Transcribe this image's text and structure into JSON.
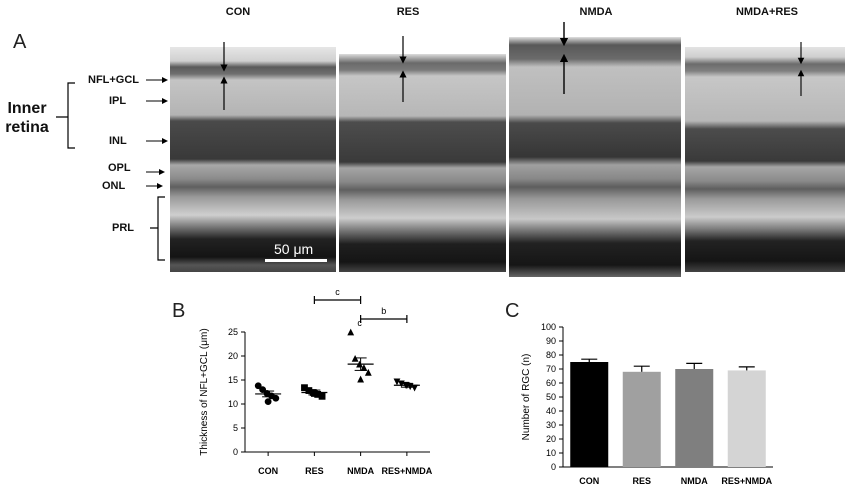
{
  "panelA": {
    "letter": "A",
    "columns": [
      "CON",
      "RES",
      "NMDA",
      "NMDA+RES"
    ],
    "layers": [
      "NFL+GCL",
      "IPL",
      "INL",
      "OPL",
      "ONL",
      "PRL"
    ],
    "inner_retina": "Inner retina",
    "scale_bar": "50 μm"
  },
  "panelB": {
    "letter": "B",
    "sig_c": "c",
    "sig_b": "b",
    "sig_point_c": "c"
  },
  "panelC": {
    "letter": "C"
  },
  "chart_data": [
    {
      "type": "scatter",
      "ylabel": "Thickness of NFL+GCL (μm)",
      "xlabel": "",
      "categories": [
        "CON",
        "RES",
        "NMDA",
        "RES+NMDA"
      ],
      "ylim": [
        0,
        25
      ],
      "yticks": [
        0,
        5,
        10,
        15,
        20,
        25
      ],
      "markers": [
        "circle",
        "square",
        "triangle-up",
        "triangle-down"
      ],
      "series": [
        {
          "points": [
            13.8,
            13.0,
            12.2,
            11.7,
            11.2,
            10.5
          ]
        },
        {
          "points": [
            13.4,
            12.8,
            12.4,
            12.0,
            11.6,
            12.2
          ]
        },
        {
          "points": [
            25.0,
            19.5,
            18.3,
            17.6,
            16.6,
            15.2
          ]
        },
        {
          "points": [
            14.6,
            14.2,
            13.9,
            13.6,
            13.3,
            13.8
          ]
        }
      ],
      "means": [
        12.1,
        12.4,
        18.3,
        13.9
      ],
      "sem": [
        0.6,
        0.5,
        1.3,
        0.4
      ]
    },
    {
      "type": "bar",
      "ylabel": "Number of RGC (n)",
      "xlabel": "",
      "categories": [
        "CON",
        "RES",
        "NMDA",
        "RES+NMDA"
      ],
      "values": [
        75,
        68,
        70,
        69
      ],
      "errors": [
        2,
        4,
        4,
        2.5
      ],
      "ylim": [
        0,
        100
      ],
      "yticks": [
        0,
        10,
        20,
        30,
        40,
        50,
        60,
        70,
        80,
        90,
        100
      ],
      "colors": [
        "#000000",
        "#a0a0a0",
        "#7f7f7f",
        "#d4d4d4"
      ]
    }
  ]
}
